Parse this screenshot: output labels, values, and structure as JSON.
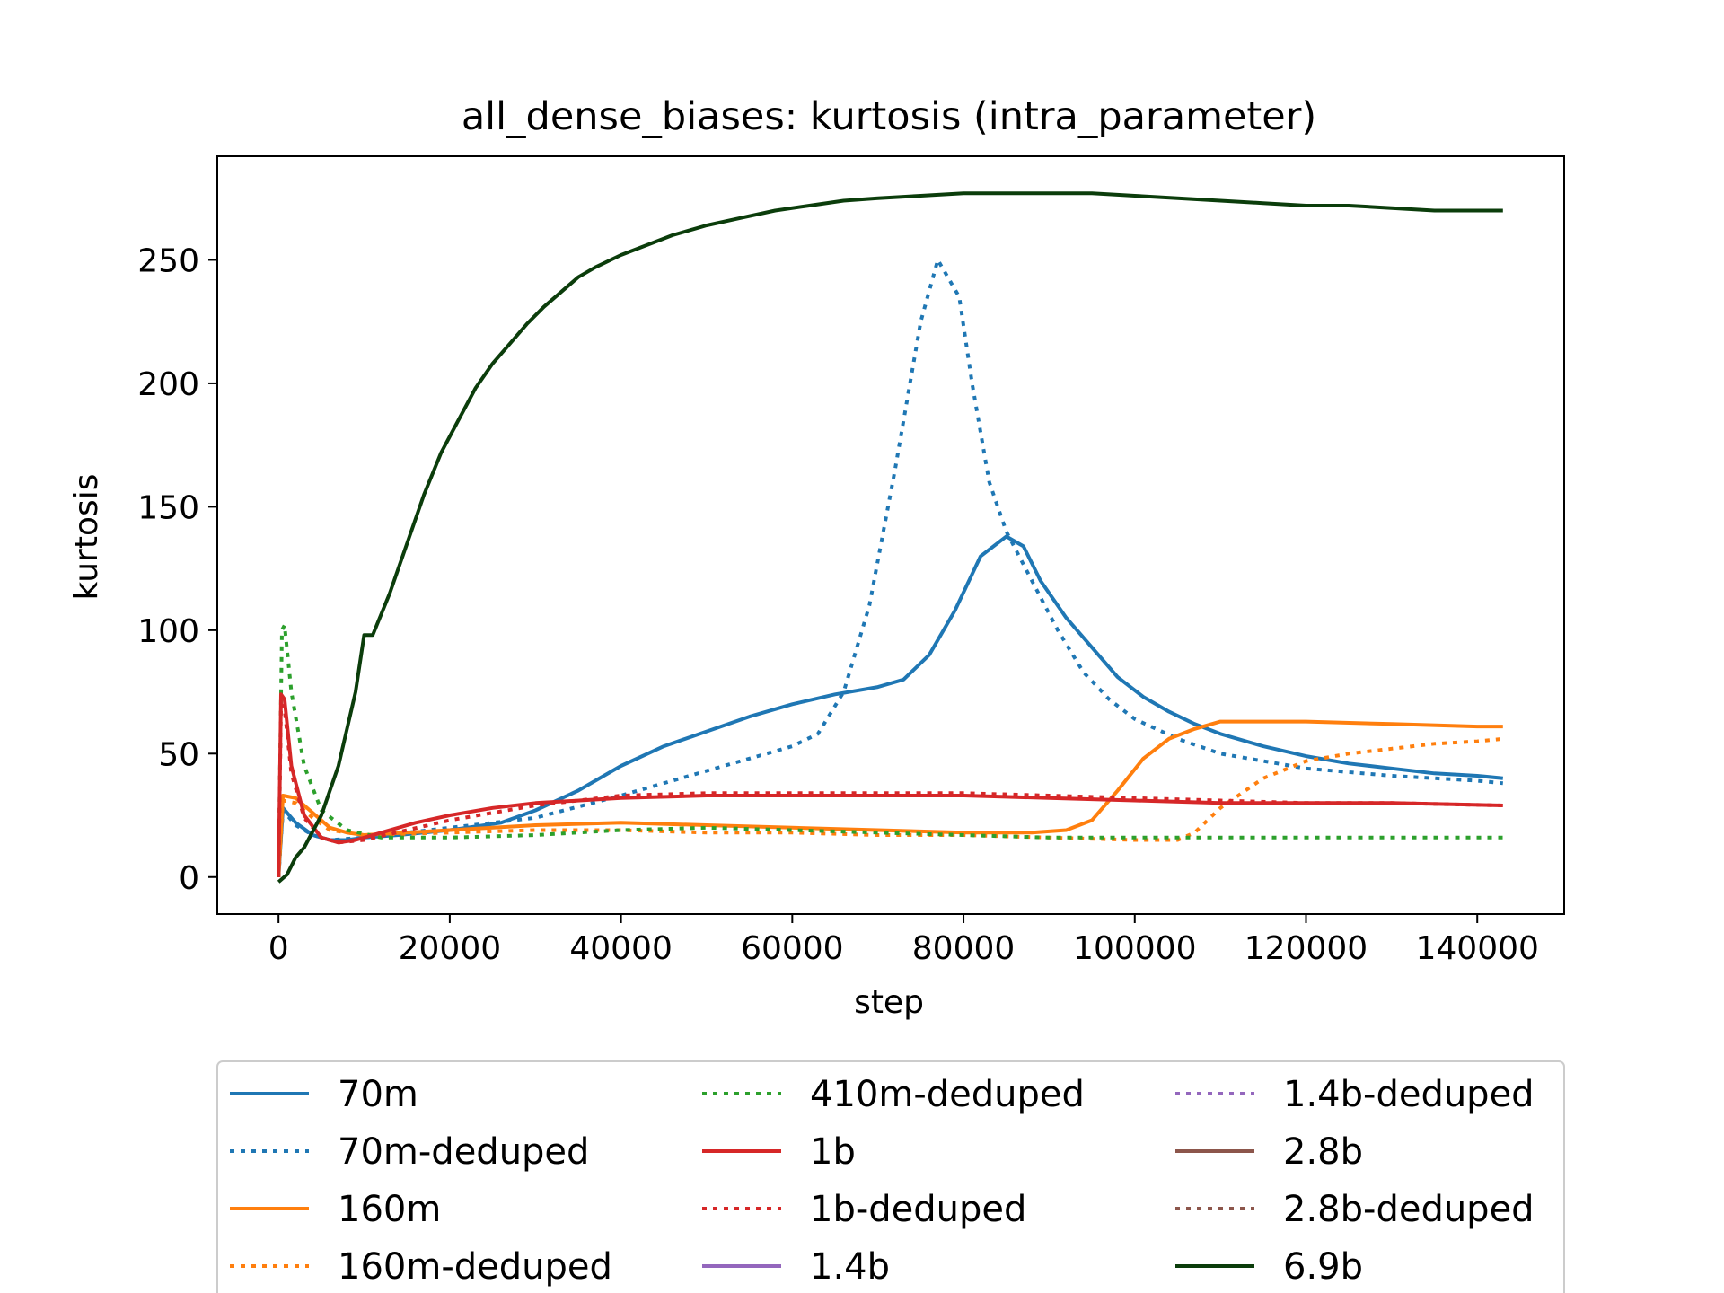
{
  "chart_data": {
    "type": "line",
    "title": "all_dense_biases: kurtosis (intra_parameter)",
    "xlabel": "step",
    "ylabel": "kurtosis",
    "xlim": [
      -7150,
      150150
    ],
    "ylim": [
      -15,
      292
    ],
    "xticks": [
      0,
      20000,
      40000,
      60000,
      80000,
      100000,
      120000,
      140000
    ],
    "yticks": [
      0,
      50,
      100,
      150,
      200,
      250
    ],
    "grid": false,
    "legend": {
      "placement": "bottom-center, below plot",
      "columns": 3
    },
    "series": [
      {
        "name": "70m",
        "color": "#1f77b4",
        "style": "solid",
        "points": [
          [
            0,
            0
          ],
          [
            512,
            28
          ],
          [
            2000,
            22
          ],
          [
            4000,
            17
          ],
          [
            6000,
            15
          ],
          [
            8000,
            15
          ],
          [
            10000,
            16
          ],
          [
            14000,
            17
          ],
          [
            20000,
            19
          ],
          [
            26000,
            22
          ],
          [
            30000,
            27
          ],
          [
            35000,
            35
          ],
          [
            40000,
            45
          ],
          [
            45000,
            53
          ],
          [
            50000,
            59
          ],
          [
            55000,
            65
          ],
          [
            60000,
            70
          ],
          [
            65000,
            74
          ],
          [
            70000,
            77
          ],
          [
            73000,
            80
          ],
          [
            76000,
            90
          ],
          [
            79000,
            108
          ],
          [
            82000,
            130
          ],
          [
            85000,
            138
          ],
          [
            87000,
            134
          ],
          [
            89000,
            120
          ],
          [
            92000,
            105
          ],
          [
            95000,
            93
          ],
          [
            98000,
            81
          ],
          [
            101000,
            73
          ],
          [
            104000,
            67
          ],
          [
            107000,
            62
          ],
          [
            110000,
            58
          ],
          [
            115000,
            53
          ],
          [
            120000,
            49
          ],
          [
            125000,
            46
          ],
          [
            130000,
            44
          ],
          [
            135000,
            42
          ],
          [
            140000,
            41
          ],
          [
            143000,
            40
          ]
        ]
      },
      {
        "name": "70m-deduped",
        "color": "#1f77b4",
        "style": "dotted",
        "points": [
          [
            0,
            0
          ],
          [
            512,
            27
          ],
          [
            2000,
            21
          ],
          [
            4000,
            17
          ],
          [
            6000,
            15
          ],
          [
            10000,
            16
          ],
          [
            20000,
            20
          ],
          [
            30000,
            24
          ],
          [
            40000,
            33
          ],
          [
            50000,
            43
          ],
          [
            55000,
            48
          ],
          [
            60000,
            53
          ],
          [
            63000,
            58
          ],
          [
            66000,
            75
          ],
          [
            69000,
            110
          ],
          [
            72000,
            165
          ],
          [
            75000,
            225
          ],
          [
            77000,
            250
          ],
          [
            78000,
            244
          ],
          [
            79500,
            235
          ],
          [
            81000,
            200
          ],
          [
            83000,
            160
          ],
          [
            85000,
            140
          ],
          [
            88000,
            120
          ],
          [
            91000,
            100
          ],
          [
            94000,
            83
          ],
          [
            97000,
            72
          ],
          [
            100000,
            64
          ],
          [
            105000,
            56
          ],
          [
            110000,
            50
          ],
          [
            120000,
            44
          ],
          [
            130000,
            41
          ],
          [
            140000,
            39
          ],
          [
            143000,
            38
          ]
        ]
      },
      {
        "name": "160m",
        "color": "#ff7f0e",
        "style": "solid",
        "points": [
          [
            0,
            0
          ],
          [
            512,
            33
          ],
          [
            2000,
            32
          ],
          [
            4000,
            26
          ],
          [
            6000,
            20
          ],
          [
            8000,
            18
          ],
          [
            10000,
            17
          ],
          [
            15000,
            18
          ],
          [
            20000,
            19
          ],
          [
            30000,
            21
          ],
          [
            40000,
            22
          ],
          [
            50000,
            21
          ],
          [
            60000,
            20
          ],
          [
            70000,
            19
          ],
          [
            80000,
            18
          ],
          [
            88000,
            18
          ],
          [
            92000,
            19
          ],
          [
            95000,
            23
          ],
          [
            98000,
            35
          ],
          [
            101000,
            48
          ],
          [
            104000,
            56
          ],
          [
            107000,
            60
          ],
          [
            110000,
            63
          ],
          [
            115000,
            63
          ],
          [
            120000,
            63
          ],
          [
            130000,
            62
          ],
          [
            140000,
            61
          ],
          [
            143000,
            61
          ]
        ]
      },
      {
        "name": "160m-deduped",
        "color": "#ff7f0e",
        "style": "dotted",
        "points": [
          [
            0,
            0
          ],
          [
            512,
            31
          ],
          [
            2000,
            30
          ],
          [
            4000,
            24
          ],
          [
            6000,
            19
          ],
          [
            10000,
            17
          ],
          [
            20000,
            18
          ],
          [
            30000,
            19
          ],
          [
            40000,
            19
          ],
          [
            50000,
            18
          ],
          [
            60000,
            18
          ],
          [
            70000,
            17
          ],
          [
            80000,
            17
          ],
          [
            90000,
            16
          ],
          [
            100000,
            15
          ],
          [
            105000,
            15
          ],
          [
            107000,
            18
          ],
          [
            110000,
            28
          ],
          [
            115000,
            40
          ],
          [
            120000,
            47
          ],
          [
            125000,
            50
          ],
          [
            130000,
            52
          ],
          [
            135000,
            54
          ],
          [
            140000,
            55
          ],
          [
            143000,
            56
          ]
        ]
      },
      {
        "name": "410m-deduped",
        "color": "#2ca02c",
        "style": "dotted",
        "points": [
          [
            0,
            0
          ],
          [
            400,
            100
          ],
          [
            700,
            102
          ],
          [
            1500,
            75
          ],
          [
            3000,
            45
          ],
          [
            5000,
            27
          ],
          [
            8000,
            19
          ],
          [
            12000,
            16
          ],
          [
            20000,
            16
          ],
          [
            30000,
            17
          ],
          [
            40000,
            19
          ],
          [
            50000,
            20
          ],
          [
            60000,
            19
          ],
          [
            70000,
            18
          ],
          [
            80000,
            17
          ],
          [
            90000,
            16
          ],
          [
            100000,
            16
          ],
          [
            110000,
            16
          ],
          [
            120000,
            16
          ],
          [
            130000,
            16
          ],
          [
            143000,
            16
          ]
        ]
      },
      {
        "name": "1b",
        "color": "#d62728",
        "style": "solid",
        "points": [
          [
            0,
            0
          ],
          [
            300,
            74
          ],
          [
            700,
            72
          ],
          [
            1500,
            45
          ],
          [
            3000,
            25
          ],
          [
            5000,
            16
          ],
          [
            7000,
            14
          ],
          [
            9000,
            15
          ],
          [
            12000,
            18
          ],
          [
            16000,
            22
          ],
          [
            20000,
            25
          ],
          [
            25000,
            28
          ],
          [
            30000,
            30
          ],
          [
            40000,
            32
          ],
          [
            50000,
            33
          ],
          [
            60000,
            33
          ],
          [
            70000,
            33
          ],
          [
            80000,
            33
          ],
          [
            90000,
            32
          ],
          [
            100000,
            31
          ],
          [
            110000,
            30
          ],
          [
            120000,
            30
          ],
          [
            130000,
            30
          ],
          [
            143000,
            29
          ]
        ]
      },
      {
        "name": "1b-deduped",
        "color": "#d62728",
        "style": "dotted",
        "points": [
          [
            0,
            0
          ],
          [
            300,
            70
          ],
          [
            700,
            68
          ],
          [
            1500,
            42
          ],
          [
            3000,
            24
          ],
          [
            5000,
            16
          ],
          [
            7000,
            14
          ],
          [
            10000,
            15
          ],
          [
            15000,
            19
          ],
          [
            20000,
            23
          ],
          [
            30000,
            29
          ],
          [
            40000,
            33
          ],
          [
            50000,
            34
          ],
          [
            60000,
            34
          ],
          [
            70000,
            34
          ],
          [
            80000,
            34
          ],
          [
            90000,
            33
          ],
          [
            100000,
            32
          ],
          [
            110000,
            31
          ],
          [
            120000,
            30
          ],
          [
            130000,
            30
          ],
          [
            143000,
            29
          ]
        ]
      },
      {
        "name": "1.4b",
        "color": "#9467bd",
        "style": "solid",
        "points": []
      },
      {
        "name": "1.4b-deduped",
        "color": "#9467bd",
        "style": "dotted",
        "points": []
      },
      {
        "name": "2.8b",
        "color": "#8c564b",
        "style": "solid",
        "points": []
      },
      {
        "name": "2.8b-deduped",
        "color": "#8c564b",
        "style": "dotted",
        "points": []
      },
      {
        "name": "6.9b",
        "color": "#0b3d0b",
        "style": "solid",
        "points": [
          [
            0,
            -2
          ],
          [
            1000,
            1
          ],
          [
            2000,
            8
          ],
          [
            3000,
            12
          ],
          [
            5000,
            25
          ],
          [
            7000,
            45
          ],
          [
            9000,
            75
          ],
          [
            10000,
            98
          ],
          [
            11000,
            98
          ],
          [
            13000,
            115
          ],
          [
            15000,
            135
          ],
          [
            17000,
            155
          ],
          [
            19000,
            172
          ],
          [
            21000,
            185
          ],
          [
            23000,
            198
          ],
          [
            25000,
            208
          ],
          [
            27000,
            216
          ],
          [
            29000,
            224
          ],
          [
            31000,
            231
          ],
          [
            33000,
            237
          ],
          [
            35000,
            243
          ],
          [
            37000,
            247
          ],
          [
            40000,
            252
          ],
          [
            43000,
            256
          ],
          [
            46000,
            260
          ],
          [
            50000,
            264
          ],
          [
            54000,
            267
          ],
          [
            58000,
            270
          ],
          [
            62000,
            272
          ],
          [
            66000,
            274
          ],
          [
            70000,
            275
          ],
          [
            75000,
            276
          ],
          [
            80000,
            277
          ],
          [
            85000,
            277
          ],
          [
            90000,
            277
          ],
          [
            95000,
            277
          ],
          [
            100000,
            276
          ],
          [
            105000,
            275
          ],
          [
            110000,
            274
          ],
          [
            115000,
            273
          ],
          [
            120000,
            272
          ],
          [
            125000,
            272
          ],
          [
            130000,
            271
          ],
          [
            135000,
            270
          ],
          [
            140000,
            270
          ],
          [
            143000,
            270
          ]
        ]
      }
    ]
  }
}
